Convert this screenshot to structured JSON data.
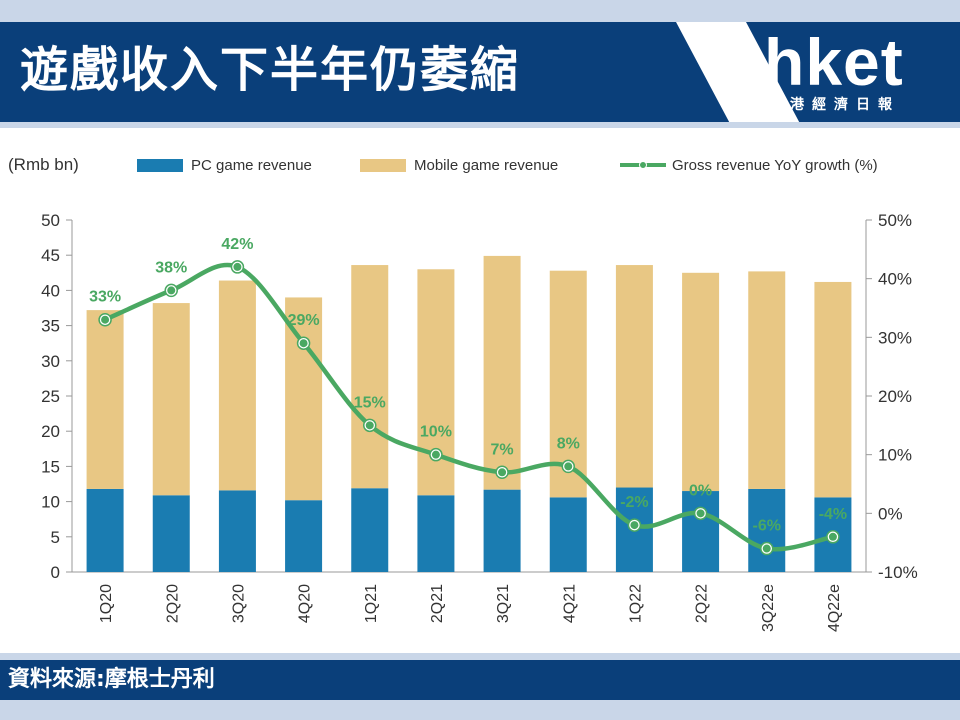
{
  "header": {
    "title": "遊戲收入下半年仍萎縮",
    "logo_word": "hket",
    "logo_sub": "香港經濟日報"
  },
  "footer": {
    "source": "資料來源:摩根士丹利"
  },
  "colors": {
    "pc": "#1a7cb1",
    "mobile": "#e8c784",
    "growth": "#4aa862",
    "header_bg": "#0a3f7a"
  },
  "chart_data": {
    "type": "bar",
    "unit_label": "(Rmb bn)",
    "categories": [
      "1Q20",
      "2Q20",
      "3Q20",
      "4Q20",
      "1Q21",
      "2Q21",
      "3Q21",
      "4Q21",
      "1Q22",
      "2Q22",
      "3Q22e",
      "4Q22e"
    ],
    "series": [
      {
        "name": "PC game revenue",
        "type": "bar",
        "stack": "rev",
        "values": [
          11.8,
          10.9,
          11.6,
          10.2,
          11.9,
          10.9,
          11.7,
          10.6,
          12.0,
          11.5,
          11.8,
          10.6
        ]
      },
      {
        "name": "Mobile game revenue",
        "type": "bar",
        "stack": "rev",
        "values": [
          25.4,
          27.3,
          29.8,
          28.8,
          31.7,
          32.1,
          33.2,
          32.2,
          31.6,
          31.0,
          30.9,
          30.6
        ]
      },
      {
        "name": "Gross revenue YoY growth (%)",
        "type": "line",
        "axis": "right",
        "values": [
          33,
          38,
          42,
          29,
          15,
          10,
          7,
          8,
          -2,
          0,
          -6,
          -4
        ],
        "labels": [
          "33%",
          "38%",
          "42%",
          "29%",
          "15%",
          "10%",
          "7%",
          "8%",
          "-2%",
          "0%",
          "-6%",
          "-4%"
        ]
      }
    ],
    "ylim": [
      0,
      50
    ],
    "y_ticks": [
      "0",
      "5",
      "10",
      "15",
      "20",
      "25",
      "30",
      "35",
      "40",
      "45",
      "50"
    ],
    "y2lim": [
      -10,
      50
    ],
    "y2_ticks": [
      "-10%",
      "0%",
      "10%",
      "20%",
      "30%",
      "40%",
      "50%"
    ],
    "legend_position": "top"
  }
}
